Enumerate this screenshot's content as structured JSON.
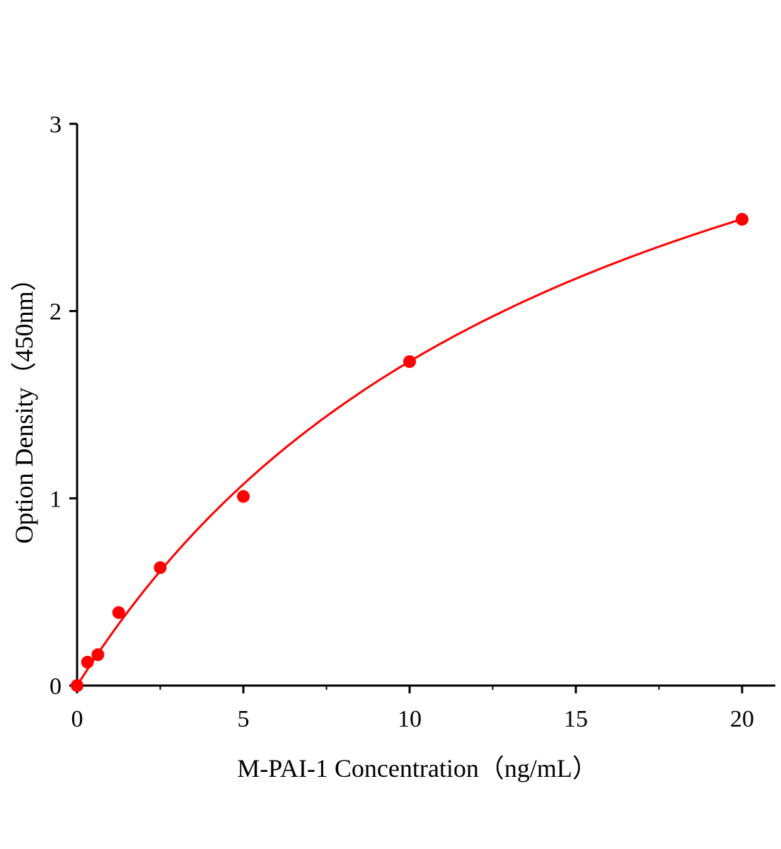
{
  "chart_data": {
    "type": "scatter",
    "title": "",
    "xlabel": "M-PAI-1 Concentration（ng/mL）",
    "ylabel": "Option Density（450nm）",
    "xlim": [
      0,
      21
    ],
    "ylim": [
      0,
      3
    ],
    "xticks": [
      0,
      5,
      10,
      15,
      20
    ],
    "yticks": [
      0,
      1,
      2,
      3
    ],
    "grid": false,
    "legend": "none",
    "color": "#ff0000",
    "series": [
      {
        "x": [
          0,
          0.3125,
          0.625,
          1.25,
          2.5,
          5,
          10,
          20
        ],
        "y": [
          0.0,
          0.125,
          0.165,
          0.39,
          0.63,
          1.01,
          1.73,
          2.49
        ],
        "fit_line": true
      }
    ]
  }
}
